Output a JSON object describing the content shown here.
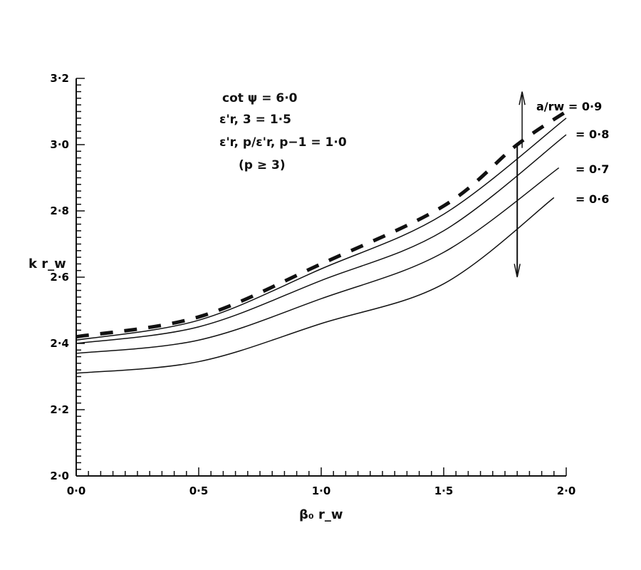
{
  "chart_data": {
    "type": "line",
    "xlabel": "β₀ r_w",
    "ylabel": "k r_w",
    "xlim": [
      0.0,
      2.0
    ],
    "ylim": [
      2.0,
      3.2
    ],
    "xticks": [
      "0·0",
      "0·5",
      "1·0",
      "1·5",
      "2·0"
    ],
    "yticks": [
      "2·0",
      "2·2",
      "2·4",
      "2·6",
      "2·8",
      "3·0",
      "3·2"
    ],
    "grid": false,
    "annotations": [
      "cot ψ = 6·0",
      "ε'r, 3 = 1·5",
      "ε'r, p/ε'r, p−1 = 1·0",
      "(p ≥ 3)"
    ],
    "series": [
      {
        "name": "a/rw = 0·9",
        "x": [
          0,
          0.5,
          1.0,
          1.5,
          2.0
        ],
        "y": [
          2.41,
          2.47,
          2.625,
          2.79,
          3.08
        ],
        "style": "solid"
      },
      {
        "name": "= 0·8",
        "x": [
          0,
          0.5,
          1.0,
          1.5,
          2.0
        ],
        "y": [
          2.4,
          2.45,
          2.59,
          2.74,
          3.03
        ],
        "style": "solid"
      },
      {
        "name": "= 0·7",
        "x": [
          0,
          0.5,
          1.0,
          1.5,
          1.97
        ],
        "y": [
          2.37,
          2.41,
          2.535,
          2.675,
          2.93
        ],
        "style": "solid"
      },
      {
        "name": "= 0·6",
        "x": [
          0,
          0.5,
          1.0,
          1.5,
          1.95
        ],
        "y": [
          2.31,
          2.345,
          2.46,
          2.58,
          2.84
        ],
        "style": "solid"
      },
      {
        "x": [
          0,
          0.5,
          1.0,
          1.5,
          1.8,
          2.0
        ],
        "y": [
          2.42,
          2.48,
          2.64,
          2.815,
          3.0,
          3.1
        ],
        "style": "dashed"
      }
    ]
  }
}
